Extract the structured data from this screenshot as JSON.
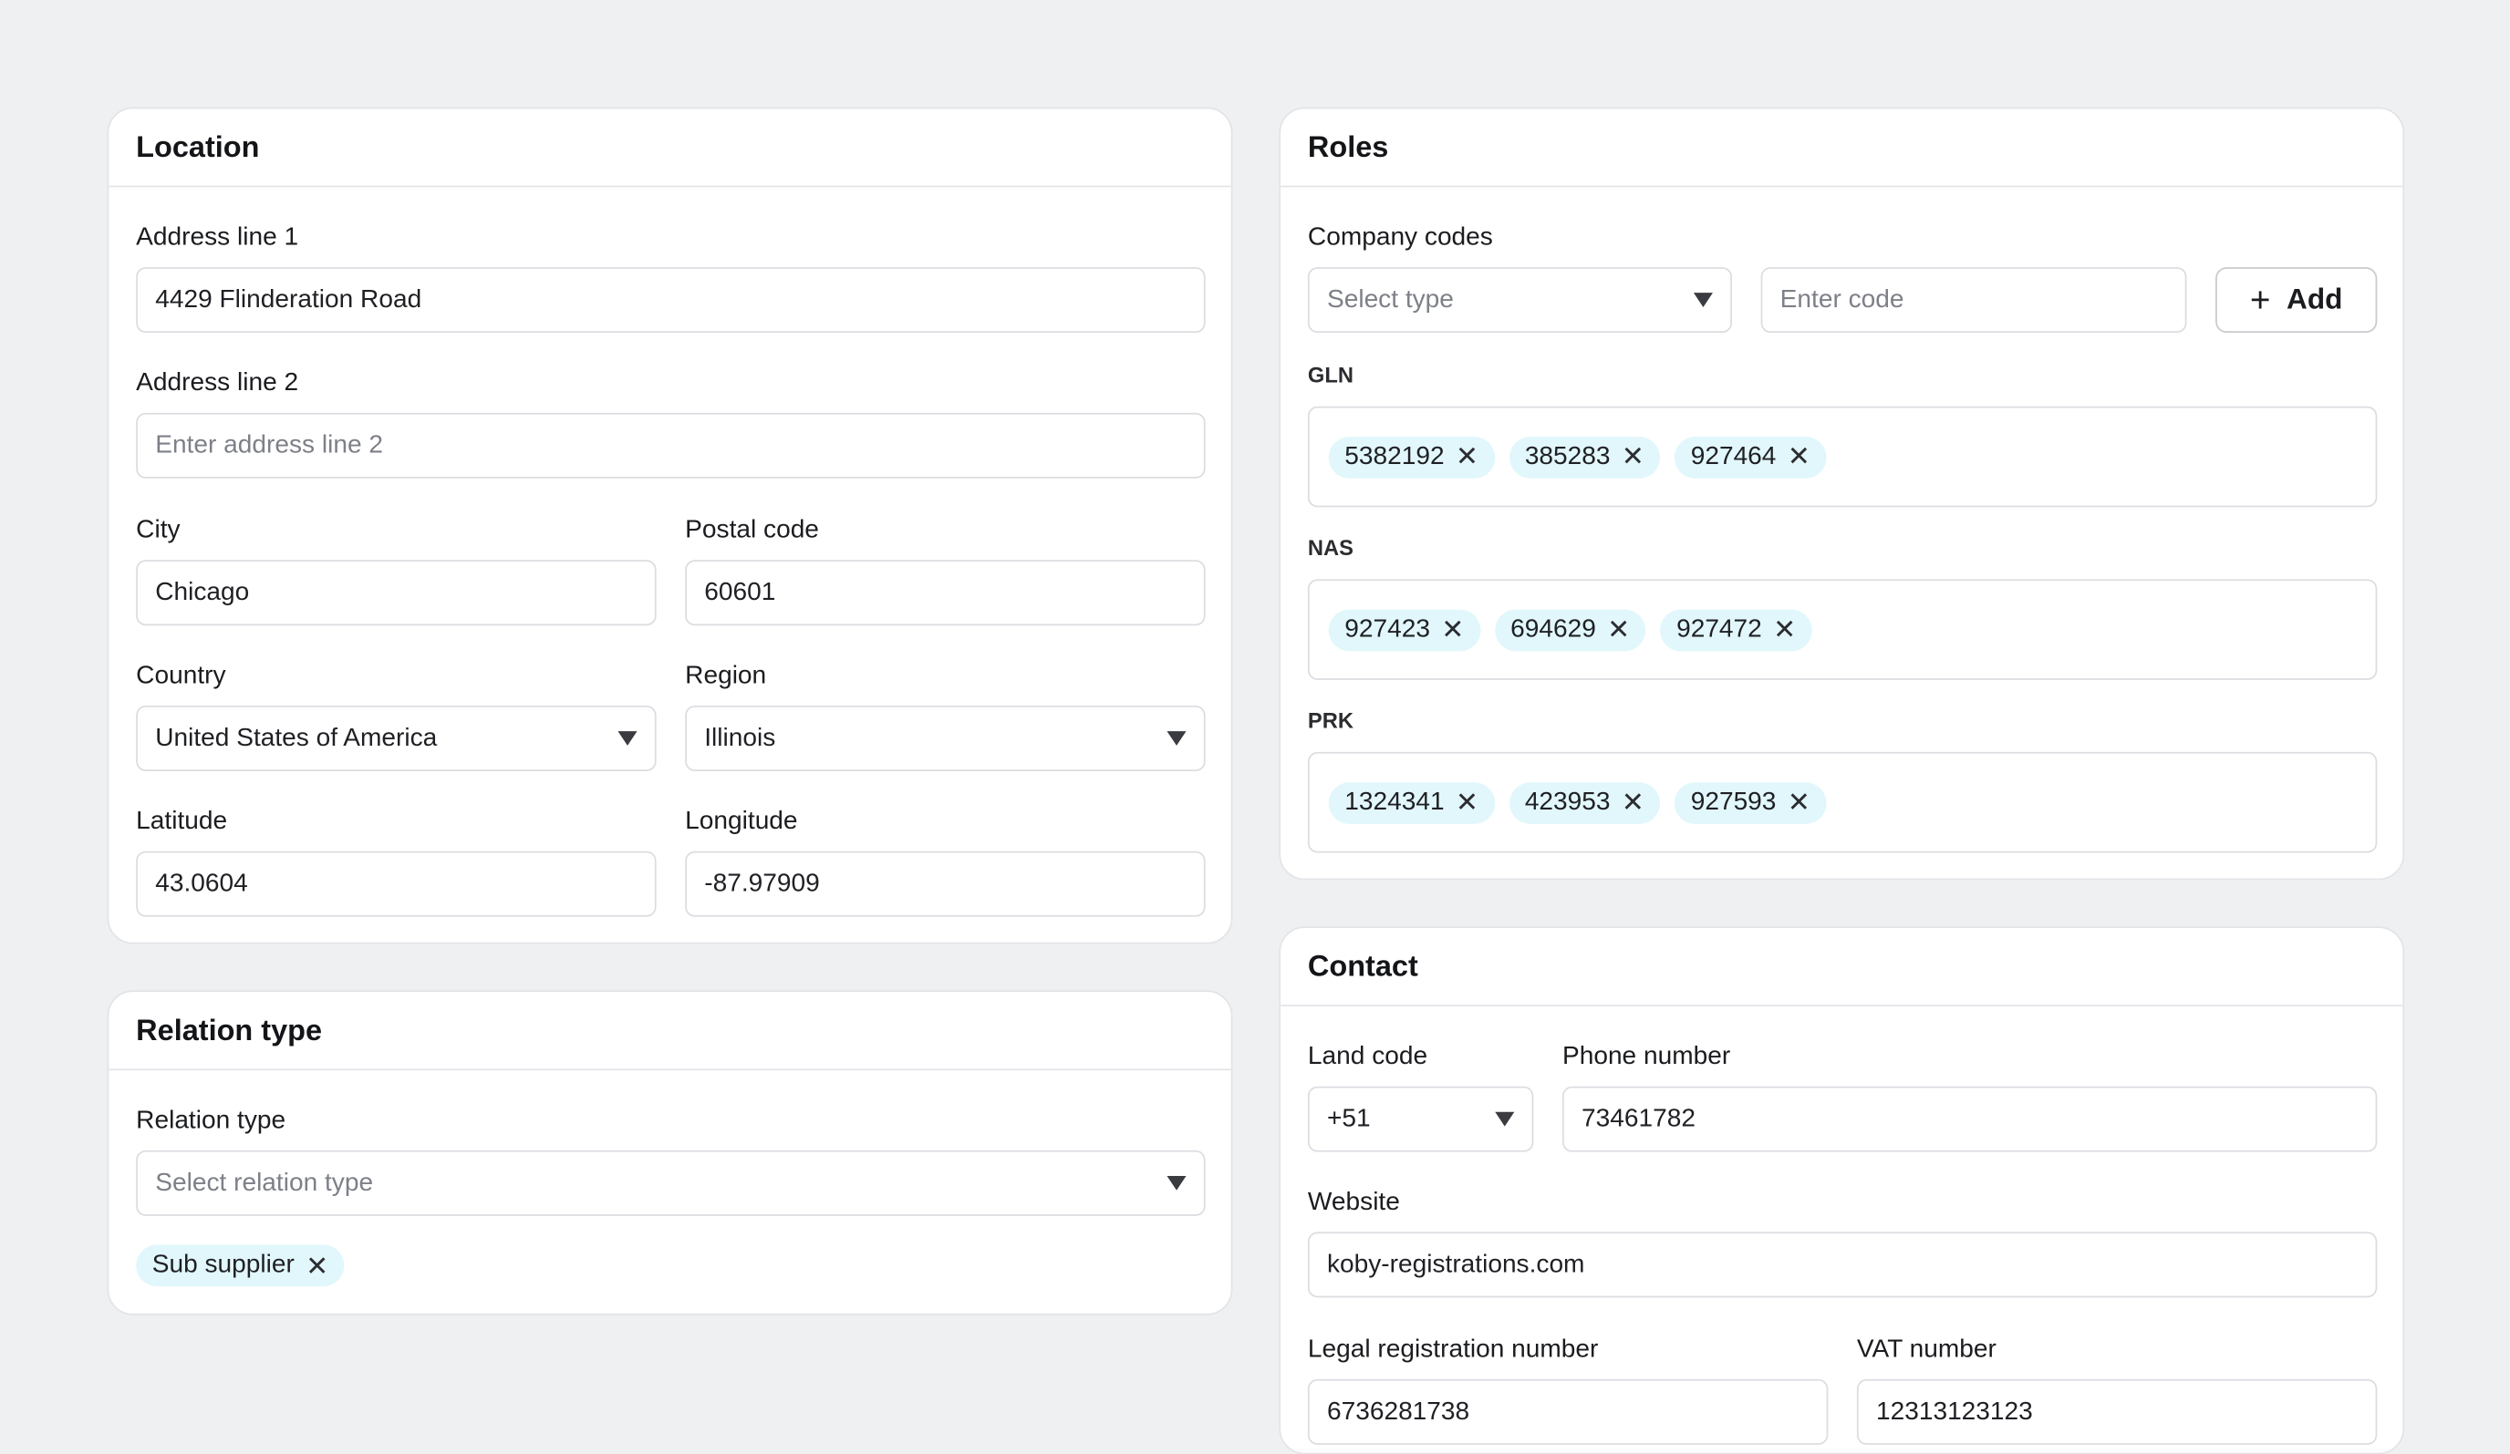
{
  "location": {
    "title": "Location",
    "address1": {
      "label": "Address line 1",
      "value": "4429 Flinderation Road"
    },
    "address2": {
      "label": "Address line 2",
      "placeholder": "Enter address line 2"
    },
    "city": {
      "label": "City",
      "value": "Chicago"
    },
    "postal": {
      "label": "Postal code",
      "value": "60601"
    },
    "country": {
      "label": "Country",
      "value": "United States of America"
    },
    "region": {
      "label": "Region",
      "value": "Illinois"
    },
    "latitude": {
      "label": "Latitude",
      "value": "43.0604"
    },
    "longitude": {
      "label": "Longitude",
      "value": "-87.97909"
    }
  },
  "relation": {
    "title": "Relation type",
    "field": {
      "label": "Relation type",
      "placeholder": "Select relation type"
    },
    "tags": [
      "Sub supplier"
    ]
  },
  "roles": {
    "title": "Roles",
    "company_codes_label": "Company codes",
    "type_placeholder": "Select type",
    "code_placeholder": "Enter code",
    "add_label": "Add",
    "groups": [
      {
        "name": "GLN",
        "codes": [
          "5382192",
          "385283",
          "927464"
        ]
      },
      {
        "name": "NAS",
        "codes": [
          "927423",
          "694629",
          "927472"
        ]
      },
      {
        "name": "PRK",
        "codes": [
          "1324341",
          "423953",
          "927593"
        ]
      }
    ]
  },
  "contact": {
    "title": "Contact",
    "land_code": {
      "label": "Land code",
      "value": "+51"
    },
    "phone": {
      "label": "Phone number",
      "value": "73461782"
    },
    "website": {
      "label": "Website",
      "value": "koby-registrations.com"
    },
    "legal": {
      "label": "Legal registration number",
      "value": "6736281738"
    },
    "vat": {
      "label": "VAT number",
      "value": "12313123123"
    }
  },
  "icons": {
    "remove": "close-icon",
    "dropdown": "chevron-down-icon",
    "add": "plus-icon"
  },
  "colors": {
    "tag_bg": "#e1f7fb",
    "page_bg": "#eff0f2"
  }
}
